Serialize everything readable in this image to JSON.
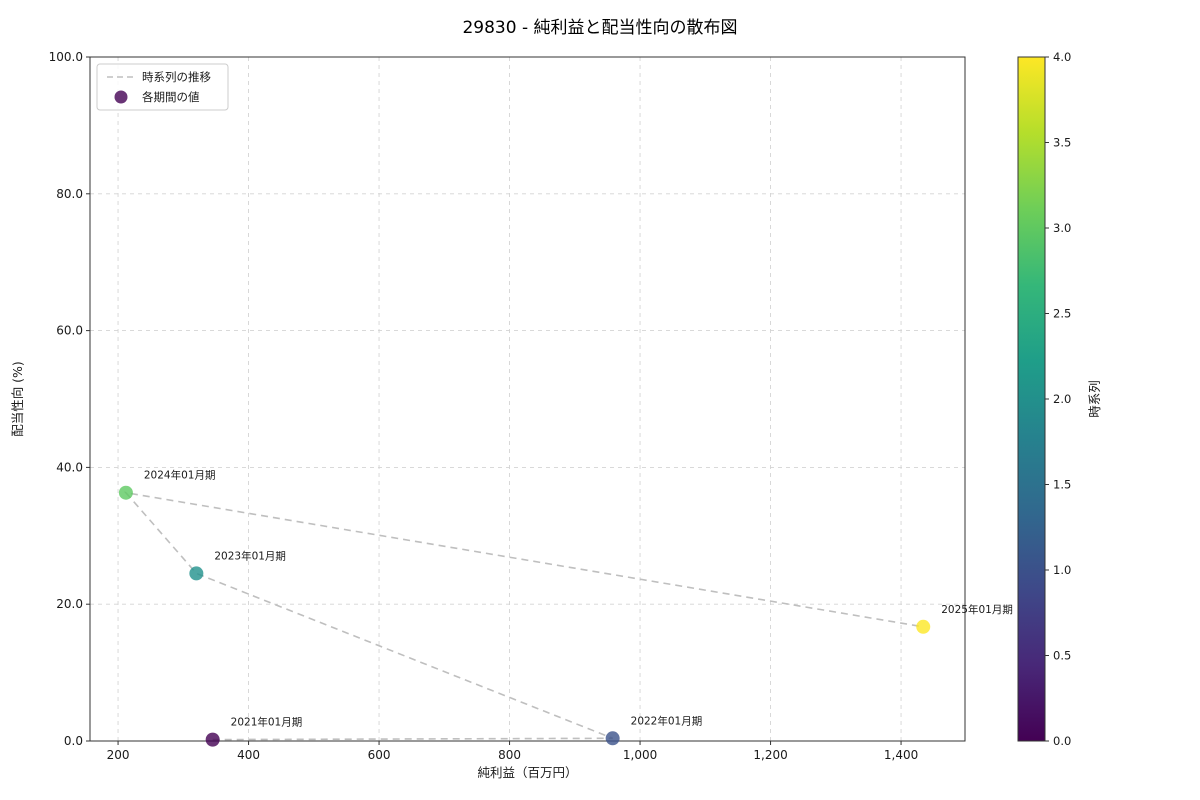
{
  "chart_data": {
    "type": "scatter",
    "title": "29830 - 純利益と配当性向の散布図",
    "xlabel": "純利益（百万円）",
    "ylabel": "配当性向 (%)",
    "xlim": [
      157,
      1498
    ],
    "ylim": [
      0,
      100
    ],
    "xticks": {
      "values": [
        200,
        400,
        600,
        800,
        1000,
        1200,
        1400
      ],
      "labels": [
        "200",
        "400",
        "600",
        "800",
        "1,000",
        "1,200",
        "1,400"
      ]
    },
    "yticks": {
      "values": [
        0,
        20,
        40,
        60,
        80,
        100
      ],
      "labels": [
        "0.0",
        "20.0",
        "40.0",
        "60.0",
        "80.0",
        "100.0"
      ]
    },
    "grid": true,
    "legend": {
      "position": "upper-left",
      "items": [
        {
          "type": "dashed-line",
          "label": "時系列の推移",
          "color": "#bfbfbf"
        },
        {
          "type": "dot",
          "label": "各期間の値",
          "color": "#440154"
        }
      ]
    },
    "trend_line": {
      "style": "dashed",
      "color": "#bfbfbf"
    },
    "points": [
      {
        "label": "2021年01月期",
        "x": 345,
        "y": 0.2,
        "t": 0,
        "color": "#440154"
      },
      {
        "label": "2022年01月期",
        "x": 958,
        "y": 0.4,
        "t": 1,
        "color": "#3b528b"
      },
      {
        "label": "2023年01月期",
        "x": 320,
        "y": 24.5,
        "t": 2,
        "color": "#21918c"
      },
      {
        "label": "2024年01月期",
        "x": 212,
        "y": 36.3,
        "t": 3,
        "color": "#5ec962"
      },
      {
        "label": "2025年01月期",
        "x": 1434,
        "y": 16.7,
        "t": 4,
        "color": "#fde725"
      }
    ],
    "colorbar": {
      "label": "時系列",
      "min": 0,
      "max": 4,
      "tick_labels": [
        "0.0",
        "0.5",
        "1.0",
        "1.5",
        "2.0",
        "2.5",
        "3.0",
        "3.5",
        "4.0"
      ],
      "colormap": [
        "#440154",
        "#482878",
        "#3e4989",
        "#31688e",
        "#26828e",
        "#1f9e89",
        "#35b779",
        "#6ece58",
        "#b5de2b",
        "#fde725"
      ]
    }
  }
}
